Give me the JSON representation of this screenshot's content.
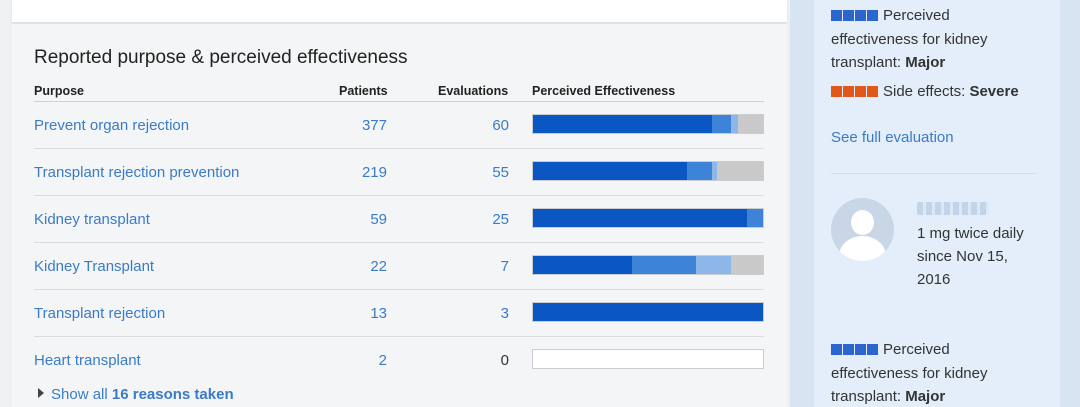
{
  "section_title": "Reported purpose & perceived effectiveness",
  "columns": {
    "purpose": "Purpose",
    "patients": "Patients",
    "evaluations": "Evaluations",
    "effectiveness": "Perceived Effectiveness"
  },
  "rows": [
    {
      "purpose": "Prevent organ rejection",
      "patients": "377",
      "evaluations": "60",
      "effectiveness": [
        0.78,
        0.08,
        0.03,
        0.11
      ]
    },
    {
      "purpose": "Transplant rejection prevention",
      "patients": "219",
      "evaluations": "55",
      "effectiveness": [
        0.67,
        0.11,
        0.02,
        0.2
      ]
    },
    {
      "purpose": "Kidney transplant",
      "patients": "59",
      "evaluations": "25",
      "effectiveness": [
        0.93,
        0.07,
        0.0,
        0.0
      ]
    },
    {
      "purpose": "Kidney Transplant",
      "patients": "22",
      "evaluations": "7",
      "effectiveness": [
        0.43,
        0.28,
        0.15,
        0.14
      ]
    },
    {
      "purpose": "Transplant rejection",
      "patients": "13",
      "evaluations": "3",
      "effectiveness": [
        1.0,
        0.0,
        0.0,
        0.0
      ]
    },
    {
      "purpose": "Heart transplant",
      "patients": "2",
      "evaluations": "0",
      "effectiveness": [
        0,
        0,
        0,
        0
      ]
    }
  ],
  "effectiveness_colors": [
    "#0a57c4",
    "#3d84d9",
    "#8cb7e8",
    "#c9c9c9"
  ],
  "show_all": {
    "prefix": "Show all",
    "count_text": "16 reasons taken"
  },
  "sidebar": {
    "eval1": {
      "label": "Perceived effectiveness for kidney transplant:",
      "value": "Major",
      "side_effects_label": "Side effects:",
      "side_effects_value": "Severe",
      "link": "See full evaluation"
    },
    "eval2": {
      "dosage_line1": "1 mg twice daily",
      "dosage_line2": "since Nov 15,",
      "dosage_line3": "2016",
      "label": "Perceived effectiveness for kidney transplant:",
      "value": "Major"
    },
    "colors": {
      "effectiveness": "#2a66cc",
      "side_effects": "#e0591a"
    }
  }
}
